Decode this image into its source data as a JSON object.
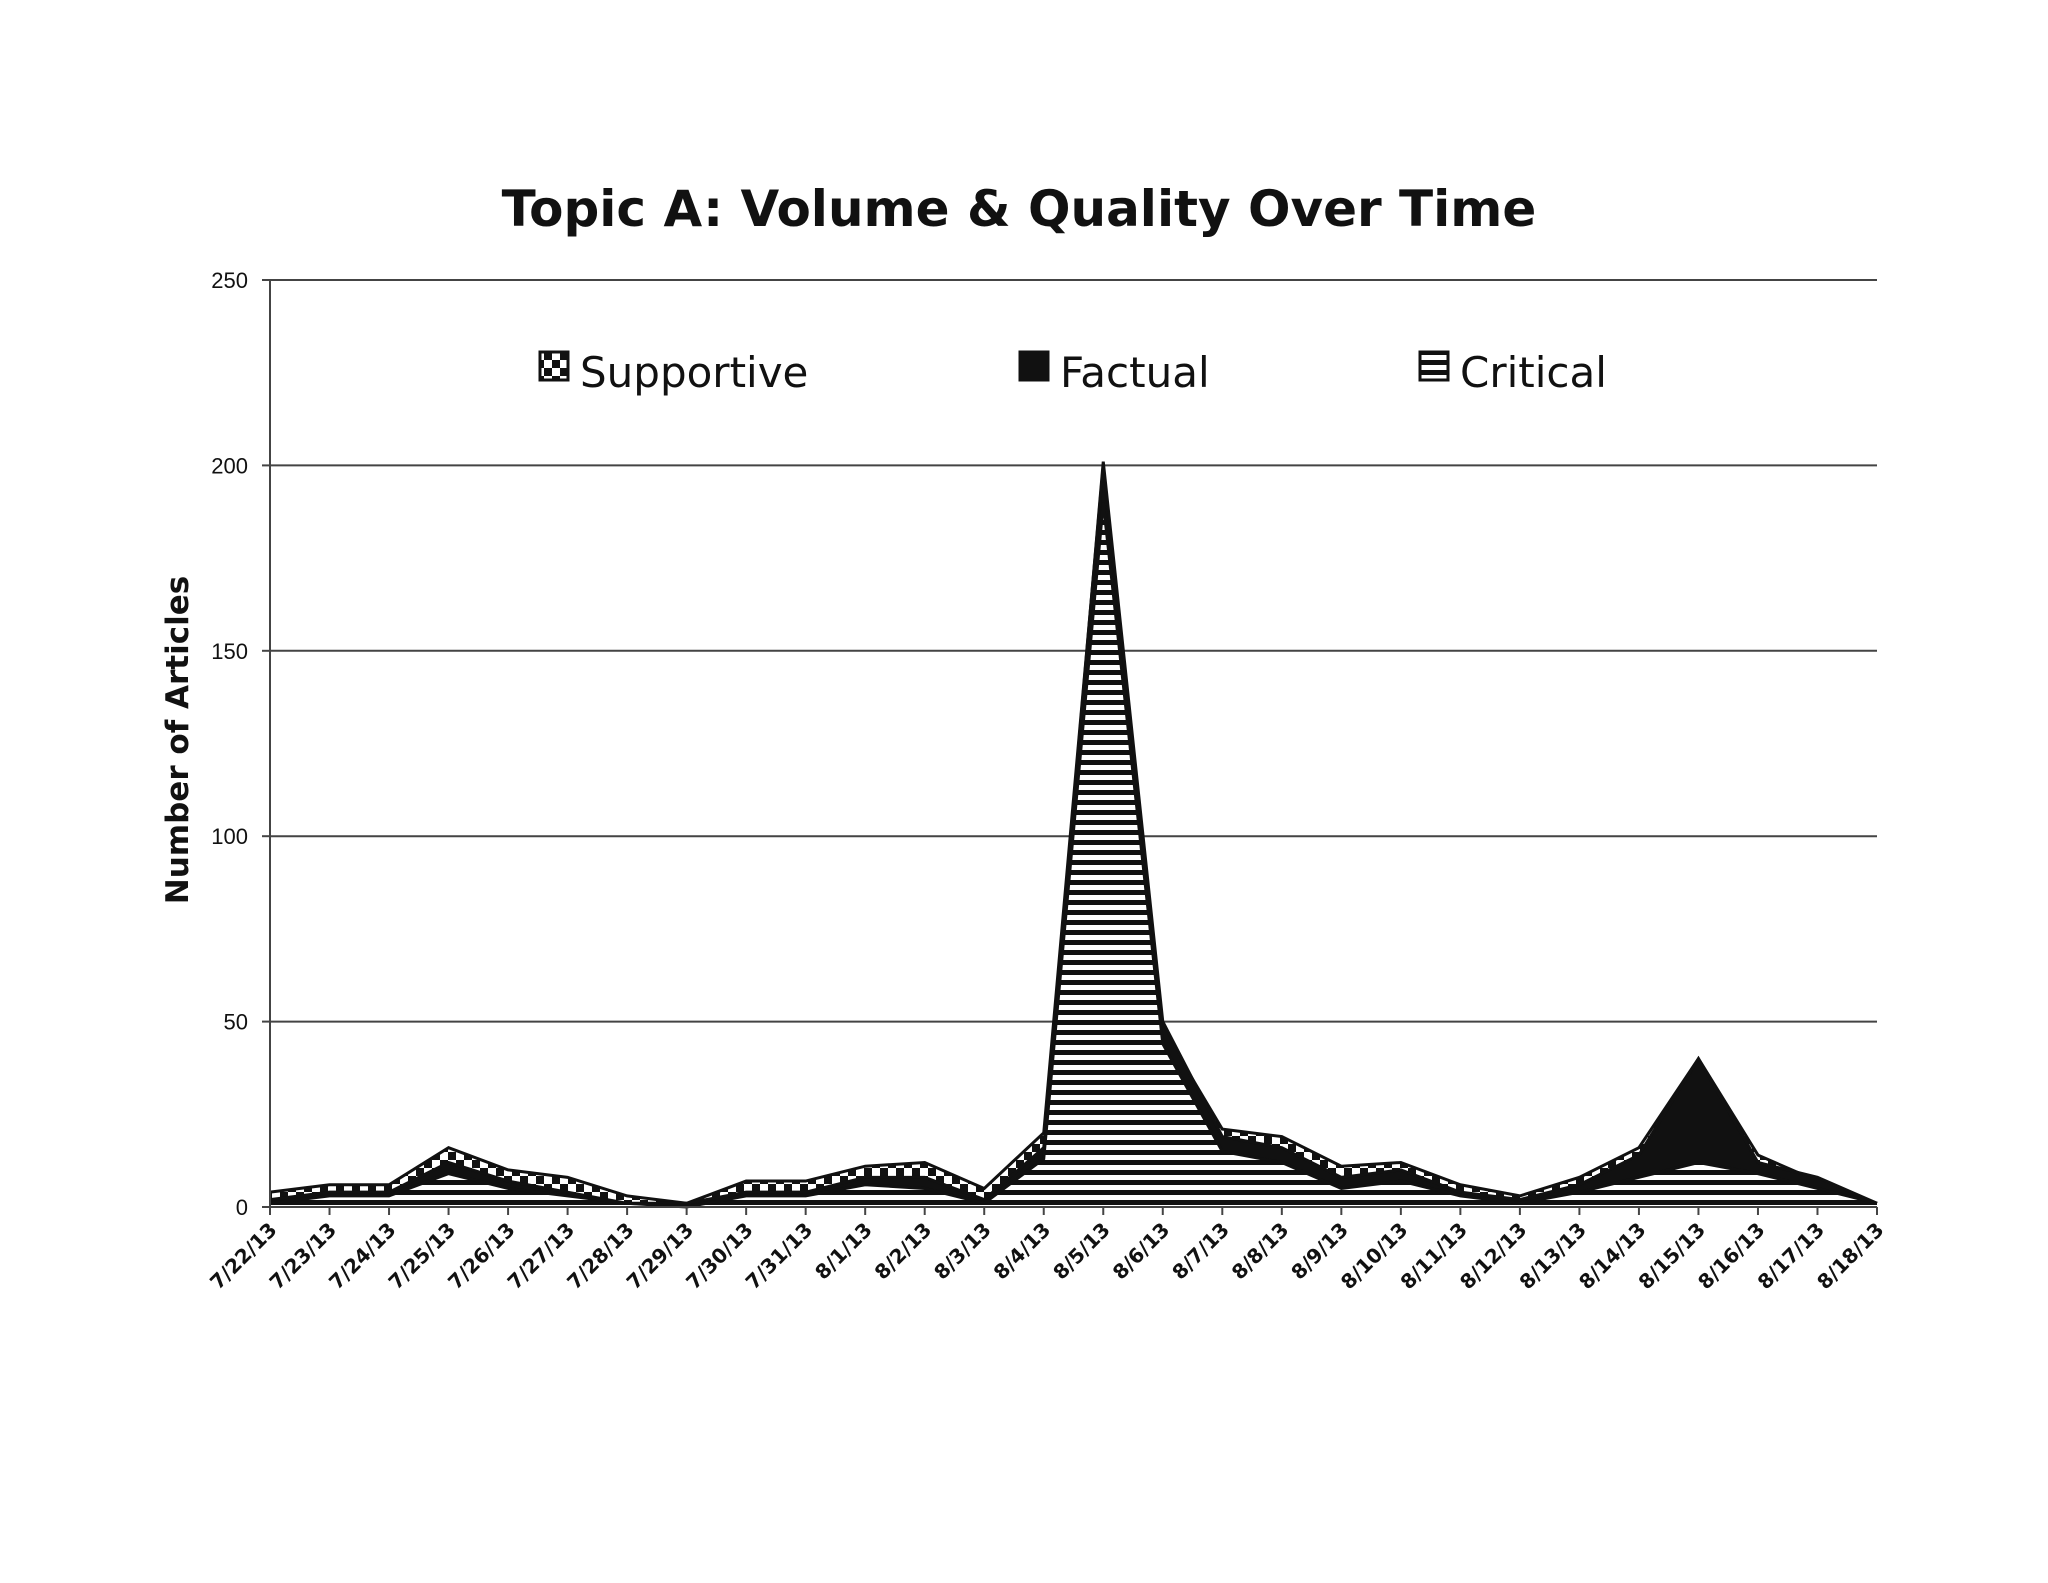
{
  "chart_data": {
    "type": "area",
    "title": "Topic A: Volume & Quality Over Time",
    "ylabel": "Number of Articles",
    "xlabel": "",
    "ylim": [
      0,
      250
    ],
    "yticks": [
      0,
      50,
      100,
      150,
      200,
      250
    ],
    "grid": true,
    "legend_position": "top",
    "categories": [
      "7/22/13",
      "7/23/13",
      "7/24/13",
      "7/25/13",
      "7/26/13",
      "7/27/13",
      "7/28/13",
      "7/29/13",
      "7/30/13",
      "7/31/13",
      "8/1/13",
      "8/2/13",
      "8/3/13",
      "8/4/13",
      "8/5/13",
      "8/6/13",
      "8/7/13",
      "8/8/13",
      "8/9/13",
      "8/10/13",
      "8/11/13",
      "8/12/13",
      "8/13/13",
      "8/14/13",
      "8/15/13",
      "8/16/13",
      "8/17/13",
      "8/18/13"
    ],
    "series": [
      {
        "name": "Supportive",
        "pattern": "checker",
        "values": [
          4,
          6,
          6,
          16,
          10,
          8,
          3,
          1,
          7,
          7,
          11,
          12,
          5,
          20,
          200,
          48,
          21,
          19,
          11,
          12,
          6,
          3,
          8,
          16,
          40,
          14,
          7,
          1
        ]
      },
      {
        "name": "Factual",
        "pattern": "solid",
        "values": [
          2,
          4,
          4,
          12,
          7,
          4,
          1,
          1,
          4,
          4,
          8,
          8,
          2,
          16,
          201,
          50,
          19,
          16,
          8,
          10,
          4,
          2,
          6,
          14,
          40,
          12,
          8,
          1
        ]
      },
      {
        "name": "Critical",
        "pattern": "horizontal-stripes",
        "values": [
          1,
          3,
          3,
          9,
          5,
          3,
          1,
          0,
          3,
          3,
          6,
          5,
          1,
          13,
          190,
          44,
          15,
          12,
          5,
          7,
          3,
          1,
          4,
          8,
          12,
          9,
          5,
          1
        ]
      }
    ]
  }
}
